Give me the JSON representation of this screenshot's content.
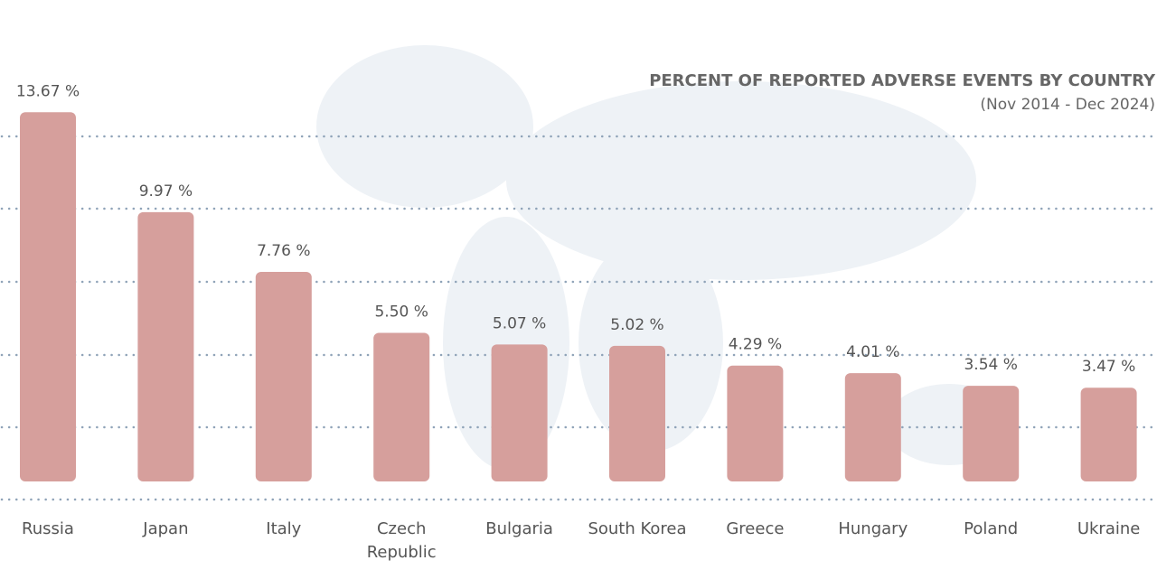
{
  "chart_data": {
    "type": "bar",
    "title": "PERCENT OF REPORTED ADVERSE EVENTS BY COUNTRY",
    "subtitle": "(Nov 2014 - Dec 2024)",
    "categories": [
      "Russia",
      "Japan",
      "Italy",
      "Czech Republic",
      "Bulgaria",
      "South Korea",
      "Greece",
      "Hungary",
      "Poland",
      "Ukraine"
    ],
    "values": [
      13.67,
      9.97,
      7.76,
      5.5,
      5.07,
      5.02,
      4.29,
      4.01,
      3.54,
      3.47
    ],
    "value_labels": [
      "13.67 %",
      "9.97 %",
      "7.76 %",
      "5.50 %",
      "5.07 %",
      "5.02 %",
      "4.29 %",
      "4.01 %",
      "3.54 %",
      "3.47 %"
    ],
    "color": "#d69f9c"
  }
}
